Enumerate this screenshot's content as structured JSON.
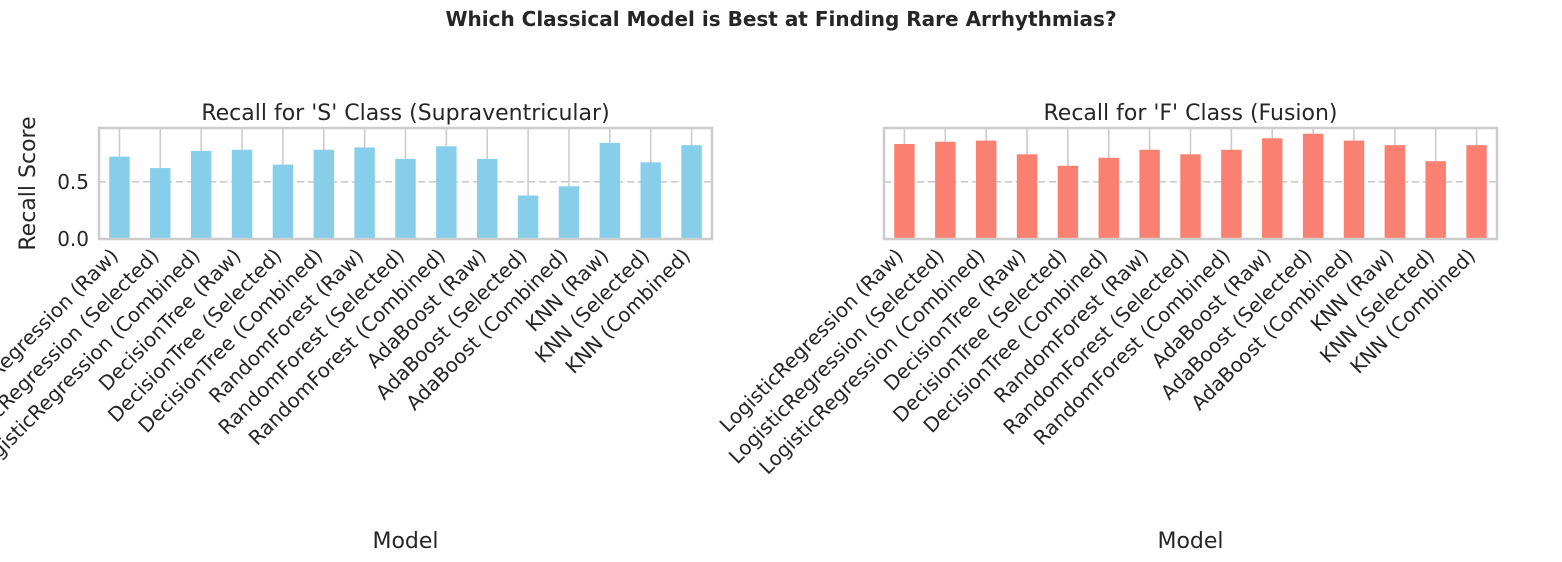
{
  "figure": {
    "suptitle": "Which Classical Model is Best at Finding Rare Arrhythmias?"
  },
  "chart_data": [
    {
      "type": "bar",
      "title": "Recall for 'S' Class (Supraventricular)",
      "xlabel": "Model",
      "ylabel": "Recall Score",
      "ylim": [
        0,
        0.97
      ],
      "yticks": [
        0.0,
        0.5
      ],
      "ytick_labels": [
        "0.0",
        "0.5"
      ],
      "grid": true,
      "color": "#87CEEB",
      "categories": [
        "LogisticRegression (Raw)",
        "LogisticRegression (Selected)",
        "LogisticRegression (Combined)",
        "DecisionTree (Raw)",
        "DecisionTree (Selected)",
        "DecisionTree (Combined)",
        "RandomForest (Raw)",
        "RandomForest (Selected)",
        "RandomForest (Combined)",
        "AdaBoost (Raw)",
        "AdaBoost (Selected)",
        "AdaBoost (Combined)",
        "KNN (Raw)",
        "KNN (Selected)",
        "KNN (Combined)"
      ],
      "values": [
        0.72,
        0.62,
        0.77,
        0.78,
        0.65,
        0.78,
        0.8,
        0.7,
        0.81,
        0.7,
        0.38,
        0.46,
        0.84,
        0.67,
        0.82
      ]
    },
    {
      "type": "bar",
      "title": "Recall for 'F' Class (Fusion)",
      "xlabel": "Model",
      "ylabel": "",
      "ylim": [
        0,
        0.97
      ],
      "yticks": [
        0.0,
        0.5
      ],
      "ytick_labels": [],
      "grid": true,
      "color": "#FA8072",
      "categories": [
        "LogisticRegression (Raw)",
        "LogisticRegression (Selected)",
        "LogisticRegression (Combined)",
        "DecisionTree (Raw)",
        "DecisionTree (Selected)",
        "DecisionTree (Combined)",
        "RandomForest (Raw)",
        "RandomForest (Selected)",
        "RandomForest (Combined)",
        "AdaBoost (Raw)",
        "AdaBoost (Selected)",
        "AdaBoost (Combined)",
        "KNN (Raw)",
        "KNN (Selected)",
        "KNN (Combined)"
      ],
      "values": [
        0.83,
        0.85,
        0.86,
        0.74,
        0.64,
        0.71,
        0.78,
        0.74,
        0.78,
        0.88,
        0.92,
        0.86,
        0.82,
        0.68,
        0.82
      ]
    }
  ]
}
